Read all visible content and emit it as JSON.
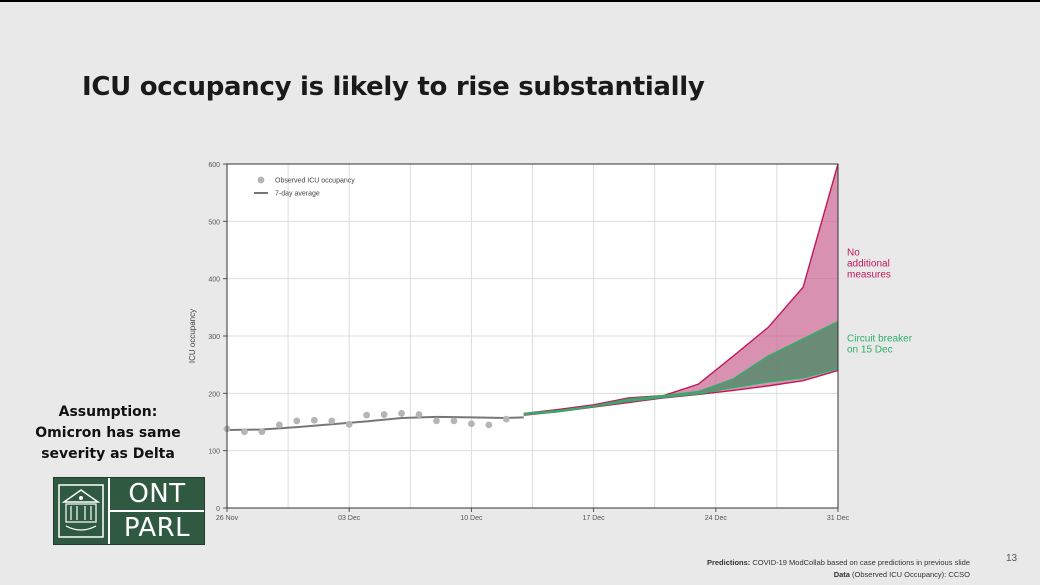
{
  "slide": {
    "title": "ICU occupancy is likely to rise substantially",
    "assumption_lines": [
      "Assumption:",
      "Omicron has same",
      "severity as Delta"
    ],
    "logo_text_top": "ONT",
    "logo_text_bottom": "PARL",
    "footnote_line1_label": "Predictions:",
    "footnote_line1_text": "COVID-19 ModCollab based on case predictions in previous slide",
    "footnote_line2_label": "Data",
    "footnote_line2_text": "(Observed ICU Occupancy): CCSO",
    "page_number": "13"
  },
  "chart_data": {
    "type": "area",
    "title": "",
    "xlabel": "",
    "ylabel": "ICU occupancy",
    "x_unit": "days since 26 Nov",
    "xlim": [
      0,
      35
    ],
    "ylim": [
      0,
      600
    ],
    "y_ticks": [
      0,
      100,
      200,
      300,
      400,
      500,
      600
    ],
    "x_ticks": [
      {
        "day": 0,
        "label": "26 Nov"
      },
      {
        "day": 7,
        "label": "03 Dec"
      },
      {
        "day": 14,
        "label": "10 Dec"
      },
      {
        "day": 21,
        "label": "17 Dec"
      },
      {
        "day": 28,
        "label": "24 Dec"
      },
      {
        "day": 35,
        "label": "31 Dec"
      }
    ],
    "grid": true,
    "legend": {
      "position": "top-left",
      "items": [
        {
          "name": "Observed ICU occupancy",
          "marker": "dot",
          "color": "#b5b5b5"
        },
        {
          "name": "7-day average",
          "marker": "line",
          "color": "#777777"
        }
      ]
    },
    "observed": {
      "name": "Observed ICU occupancy",
      "x": [
        0,
        1,
        2,
        3,
        4,
        5,
        6,
        7,
        8,
        9,
        10,
        11,
        12,
        13,
        14,
        15,
        16
      ],
      "y": [
        138,
        133,
        133,
        145,
        152,
        153,
        152,
        146,
        162,
        163,
        165,
        163,
        152,
        152,
        147,
        145,
        155
      ]
    },
    "average": {
      "name": "7-day average",
      "x": [
        0,
        2,
        4,
        6,
        8,
        10,
        12,
        14,
        16,
        17
      ],
      "y": [
        136,
        137,
        141,
        146,
        151,
        157,
        159,
        158,
        157,
        158
      ]
    },
    "series": [
      {
        "name": "No additional measures",
        "label_lines": [
          "No",
          "additional",
          "measures"
        ],
        "color": "#c2185b",
        "fill": "#c8628e",
        "x": [
          17,
          19,
          21,
          23,
          25,
          27,
          29,
          31,
          33,
          35
        ],
        "lower": [
          162,
          168,
          176,
          184,
          192,
          198,
          205,
          213,
          222,
          240
        ],
        "upper": [
          165,
          172,
          180,
          192,
          196,
          216,
          265,
          315,
          385,
          600
        ]
      },
      {
        "name": "Circuit breaker on 15 Dec",
        "label_lines": [
          "Circuit breaker",
          "on 15 Dec"
        ],
        "color": "#2eaf6a",
        "fill": "#3c8a60",
        "x": [
          17,
          19,
          21,
          23,
          25,
          27,
          29,
          31,
          33,
          35
        ],
        "lower": [
          163,
          168,
          177,
          186,
          193,
          199,
          210,
          220,
          227,
          243
        ],
        "upper": [
          165,
          170,
          178,
          190,
          196,
          203,
          225,
          265,
          295,
          325
        ]
      }
    ]
  }
}
